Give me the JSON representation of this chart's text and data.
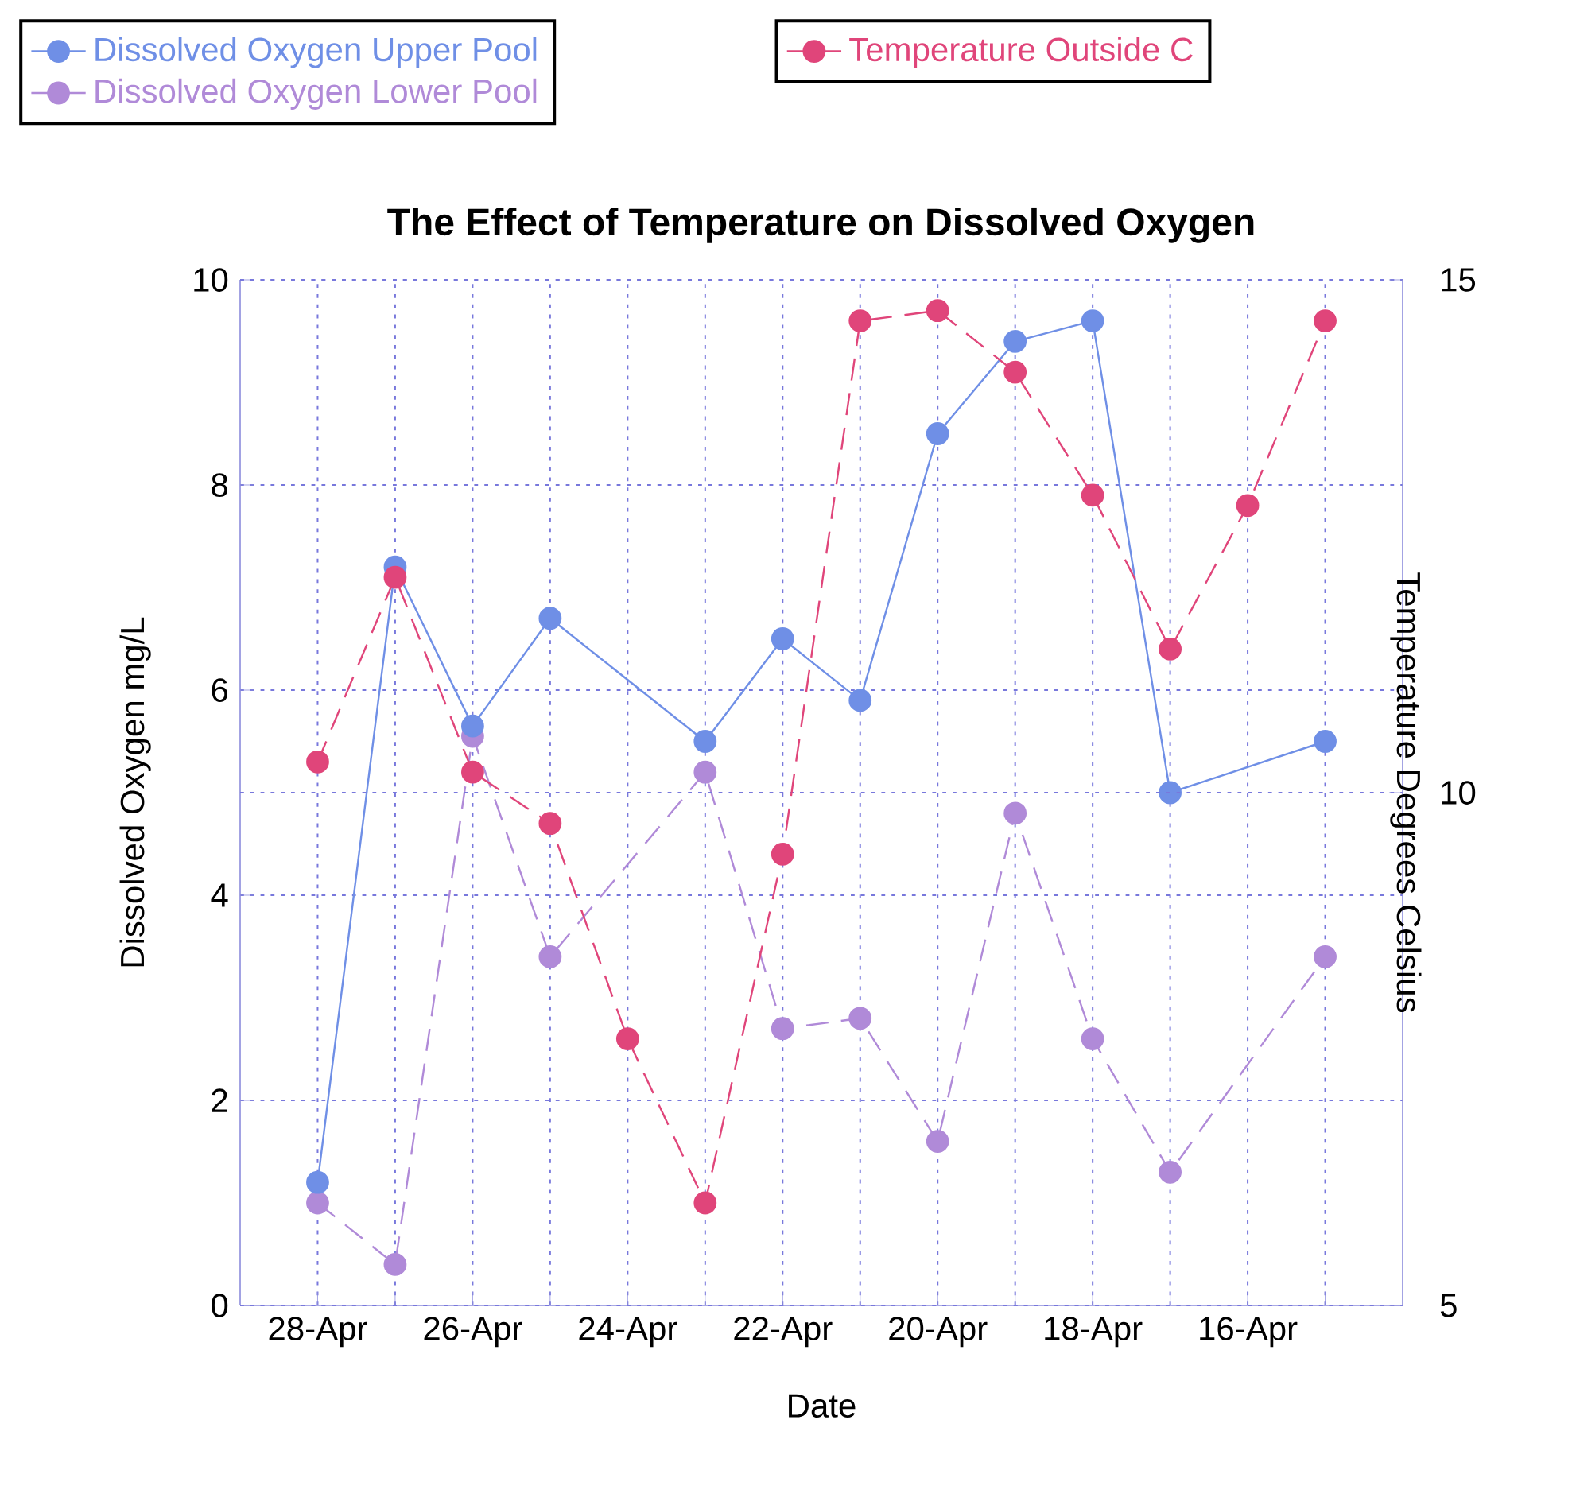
{
  "chart_data": {
    "type": "line",
    "title": "The Effect of Temperature on Dissolved Oxygen",
    "xlabel": "Date",
    "ylabel": "Dissolved Oxygen mg/L",
    "y2label": "Temperature Degrees Celsius",
    "categories": [
      "28-Apr",
      null,
      "26-Apr",
      null,
      "24-Apr",
      null,
      "22-Apr",
      null,
      "20-Apr",
      null,
      "18-Apr",
      null,
      "16-Apr",
      null
    ],
    "series": [
      {
        "name": "Dissolved Oxygen Upper Pool",
        "color": "#6f8fe6",
        "line_style": "solid",
        "values": [
          1.2,
          7.2,
          5.65,
          6.7,
          null,
          5.5,
          6.5,
          5.9,
          8.5,
          9.4,
          9.6,
          5.0,
          null,
          5.5
        ]
      },
      {
        "name": "Dissolved Oxygen Lower Pool",
        "color": "#b08ad8",
        "line_style": "dashed",
        "values": [
          1.0,
          0.4,
          5.55,
          3.4,
          null,
          5.2,
          2.7,
          2.8,
          1.6,
          4.8,
          2.6,
          1.3,
          null,
          3.4
        ]
      },
      {
        "name": "Temperature Outside C",
        "color": "#e0457a",
        "line_style": "dashed",
        "axis": "y2",
        "values": [
          10.3,
          12.1,
          10.2,
          9.7,
          7.6,
          6.0,
          9.4,
          14.6,
          14.7,
          14.1,
          12.9,
          11.4,
          12.8,
          14.6
        ]
      }
    ],
    "ylim": [
      0,
      10
    ],
    "yticks": [
      0,
      2,
      4,
      6,
      8,
      10
    ],
    "y2lim": [
      5,
      15
    ],
    "y2ticks": [
      5,
      10,
      15
    ],
    "grid": true,
    "legend": "top",
    "marker": "circle"
  }
}
